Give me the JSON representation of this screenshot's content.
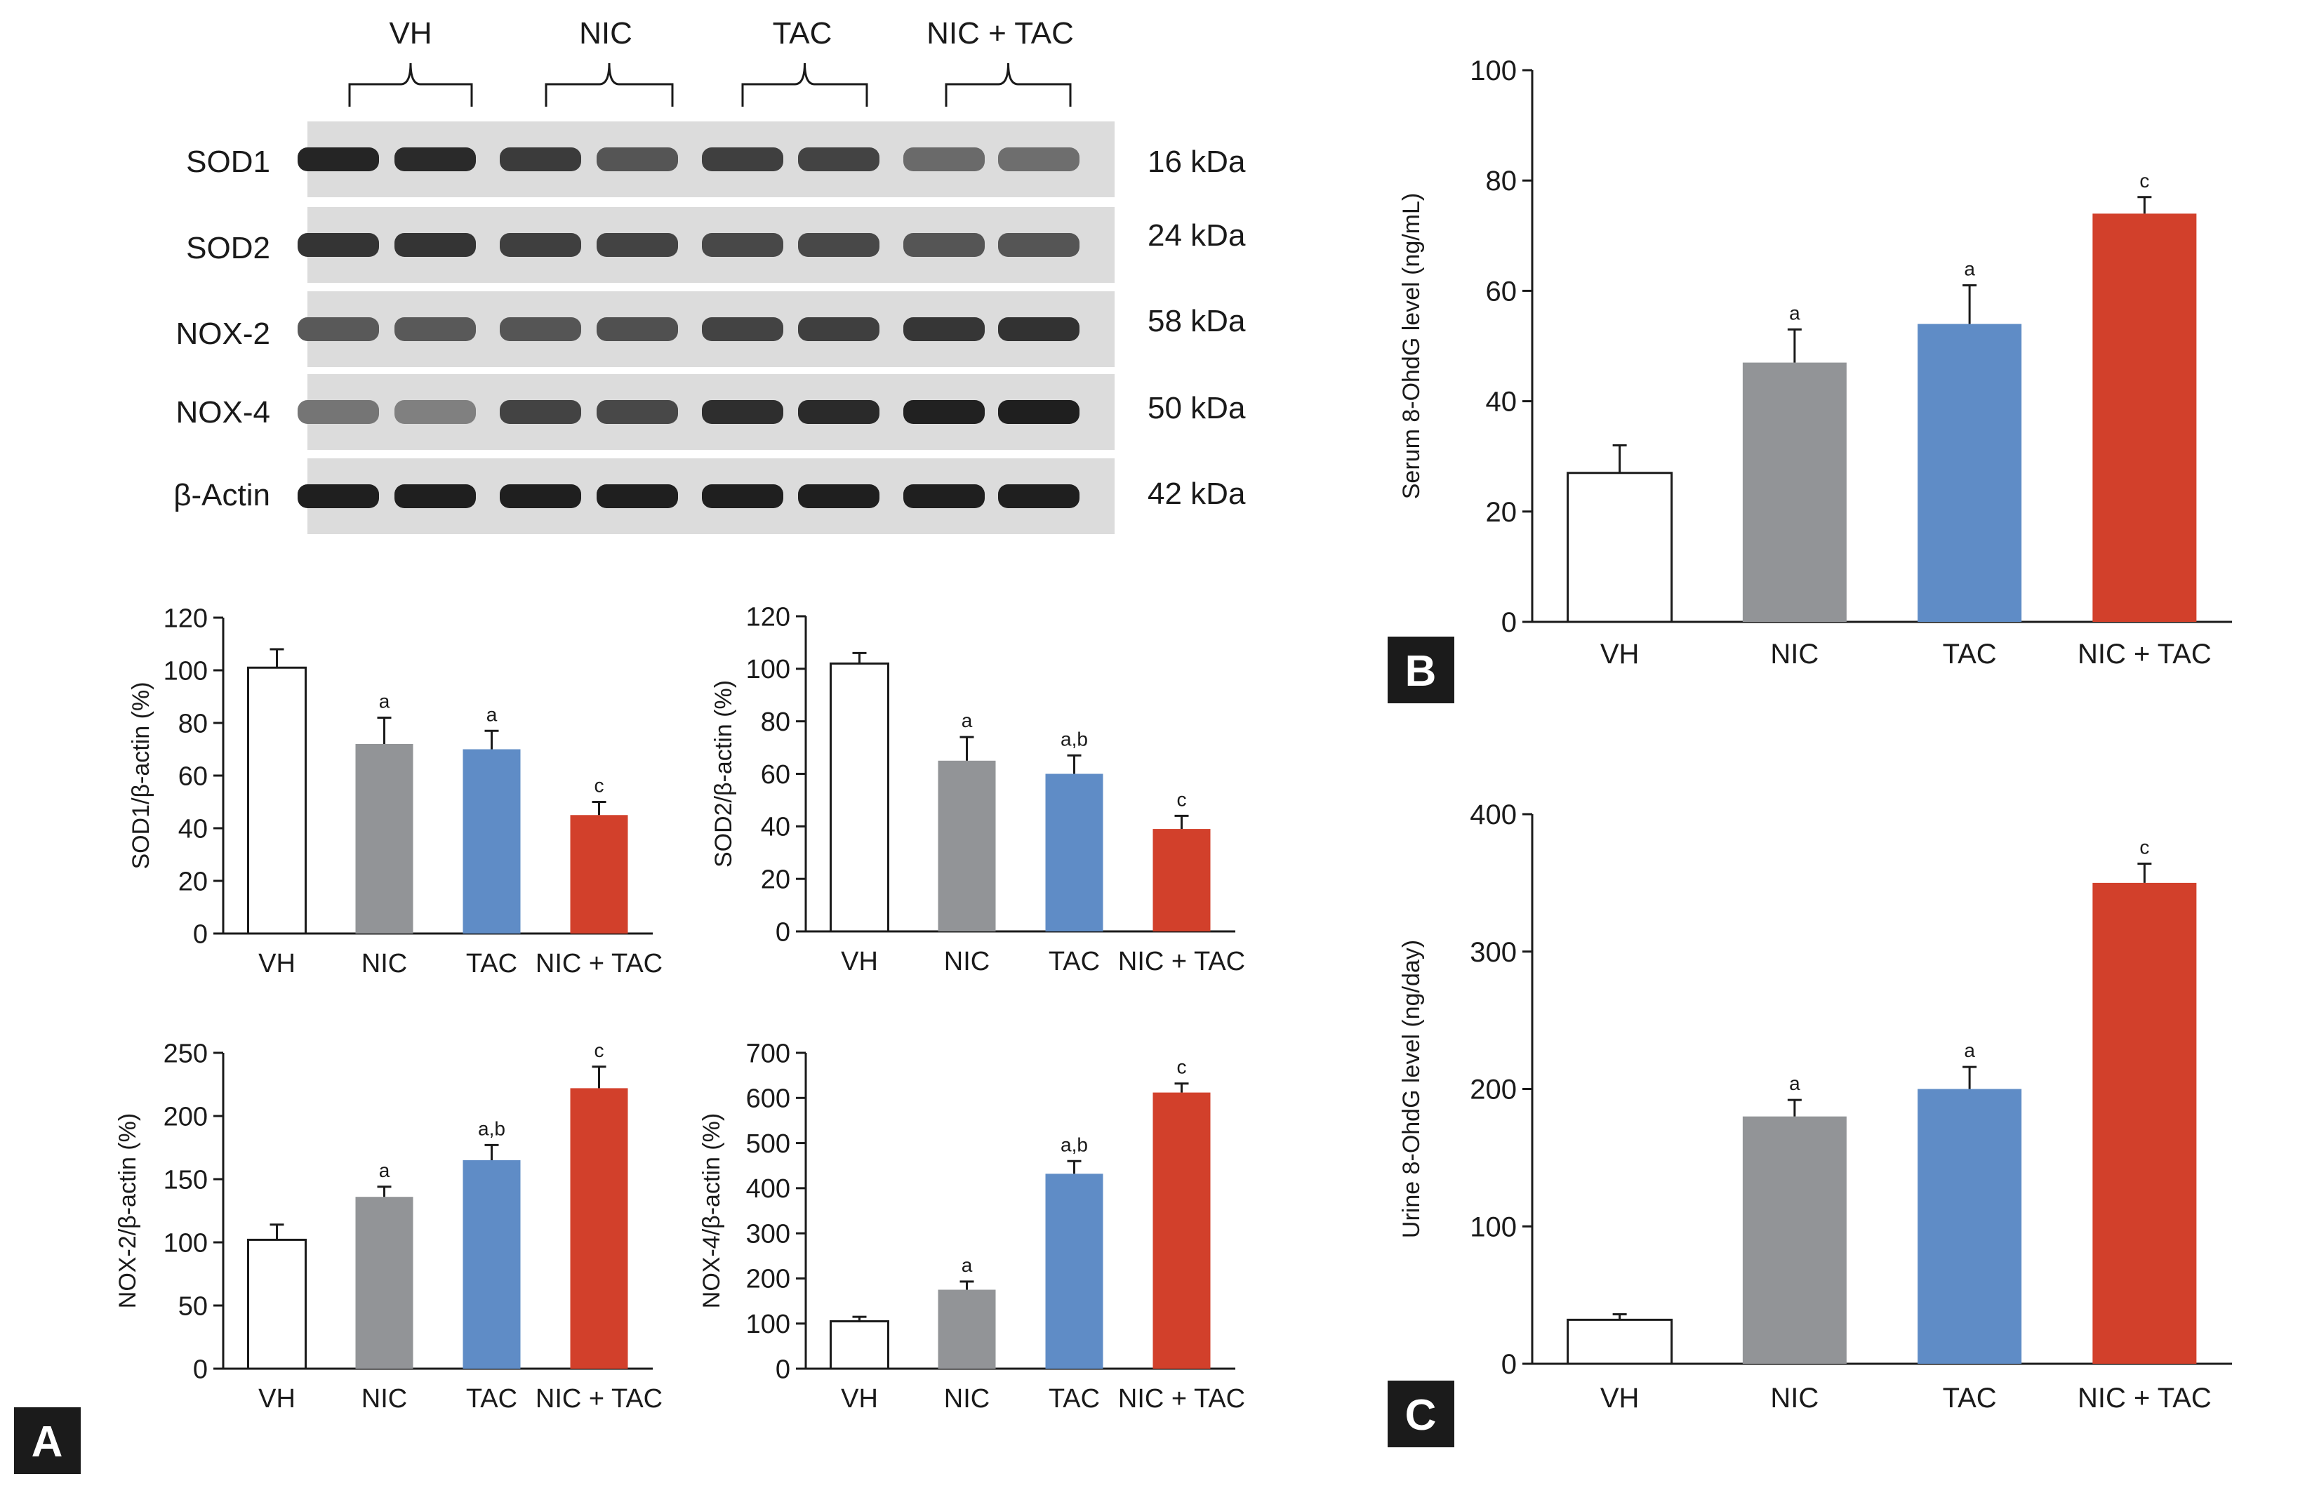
{
  "panel_labels": [
    "A",
    "B",
    "C"
  ],
  "blot": {
    "groups": [
      "VH",
      "NIC",
      "TAC",
      "NIC + TAC"
    ],
    "rows": [
      {
        "protein": "SOD1",
        "mw": "16 kDa"
      },
      {
        "protein": "SOD2",
        "mw": "24 kDa"
      },
      {
        "protein": "NOX-2",
        "mw": "58 kDa"
      },
      {
        "protein": "NOX-4",
        "mw": "50 kDa"
      },
      {
        "protein": "β-Actin",
        "mw": "42 kDa"
      }
    ],
    "intensities": [
      [
        0.92,
        0.9,
        0.82,
        0.7,
        0.8,
        0.78,
        0.6,
        0.58
      ],
      [
        0.85,
        0.85,
        0.8,
        0.78,
        0.76,
        0.76,
        0.7,
        0.7
      ],
      [
        0.68,
        0.68,
        0.7,
        0.72,
        0.78,
        0.8,
        0.84,
        0.86
      ],
      [
        0.55,
        0.5,
        0.78,
        0.76,
        0.88,
        0.9,
        0.94,
        0.95
      ],
      [
        0.95,
        0.95,
        0.95,
        0.95,
        0.95,
        0.95,
        0.95,
        0.95
      ]
    ]
  },
  "colors": {
    "VH": "#ffffff",
    "NIC": "#929497",
    "TAC": "#5f8cc6",
    "NIC + TAC": "#d2402b",
    "axis": "#1a1a1a",
    "panel_label_bg": "#1b1b1b"
  },
  "chart_data": [
    {
      "id": "sod1",
      "type": "bar",
      "categories": [
        "VH",
        "NIC",
        "TAC",
        "NIC + TAC"
      ],
      "values": [
        101,
        72,
        70,
        45
      ],
      "errors": [
        7,
        10,
        7,
        5
      ],
      "annotations": [
        "",
        "a",
        "a",
        "c"
      ],
      "ylabel": "SOD1/β-actin (%)",
      "ylim": [
        0,
        120
      ],
      "yticks": [
        0,
        20,
        40,
        60,
        80,
        100,
        120
      ]
    },
    {
      "id": "sod2",
      "type": "bar",
      "categories": [
        "VH",
        "NIC",
        "TAC",
        "NIC + TAC"
      ],
      "values": [
        102,
        65,
        60,
        39
      ],
      "errors": [
        4,
        9,
        7,
        5
      ],
      "annotations": [
        "",
        "a",
        "a,b",
        "c"
      ],
      "ylabel": "SOD2/β-actin (%)",
      "ylim": [
        0,
        120
      ],
      "yticks": [
        0,
        20,
        40,
        60,
        80,
        100,
        120
      ]
    },
    {
      "id": "nox2",
      "type": "bar",
      "categories": [
        "VH",
        "NIC",
        "TAC",
        "NIC + TAC"
      ],
      "values": [
        102,
        136,
        165,
        222
      ],
      "errors": [
        12,
        8,
        12,
        17
      ],
      "annotations": [
        "",
        "a",
        "a,b",
        "c"
      ],
      "ylabel": "NOX-2/β-actin (%)",
      "ylim": [
        0,
        250
      ],
      "yticks": [
        0,
        50,
        100,
        150,
        200,
        250
      ]
    },
    {
      "id": "nox4",
      "type": "bar",
      "categories": [
        "VH",
        "NIC",
        "TAC",
        "NIC + TAC"
      ],
      "values": [
        105,
        175,
        432,
        612
      ],
      "errors": [
        10,
        18,
        28,
        20
      ],
      "annotations": [
        "",
        "a",
        "a,b",
        "c"
      ],
      "ylabel": "NOX-4/β-actin (%)",
      "ylim": [
        0,
        700
      ],
      "yticks": [
        0,
        100,
        200,
        300,
        400,
        500,
        600,
        700
      ]
    },
    {
      "id": "serum",
      "type": "bar",
      "categories": [
        "VH",
        "NIC",
        "TAC",
        "NIC + TAC"
      ],
      "values": [
        27,
        47,
        54,
        74
      ],
      "errors": [
        5,
        6,
        7,
        3
      ],
      "annotations": [
        "",
        "a",
        "a",
        "c"
      ],
      "ylabel": "Serum 8-OhdG level (ng/mL)",
      "ylim": [
        0,
        100
      ],
      "yticks": [
        0,
        20,
        40,
        60,
        80,
        100
      ]
    },
    {
      "id": "urine",
      "type": "bar",
      "categories": [
        "VH",
        "NIC",
        "TAC",
        "NIC + TAC"
      ],
      "values": [
        32,
        180,
        200,
        350
      ],
      "errors": [
        4,
        12,
        16,
        14
      ],
      "annotations": [
        "",
        "a",
        "a",
        "c"
      ],
      "ylabel": "Urine 8-OhdG level (ng/day)",
      "ylim": [
        0,
        400
      ],
      "yticks": [
        0,
        100,
        200,
        300,
        400
      ]
    }
  ]
}
